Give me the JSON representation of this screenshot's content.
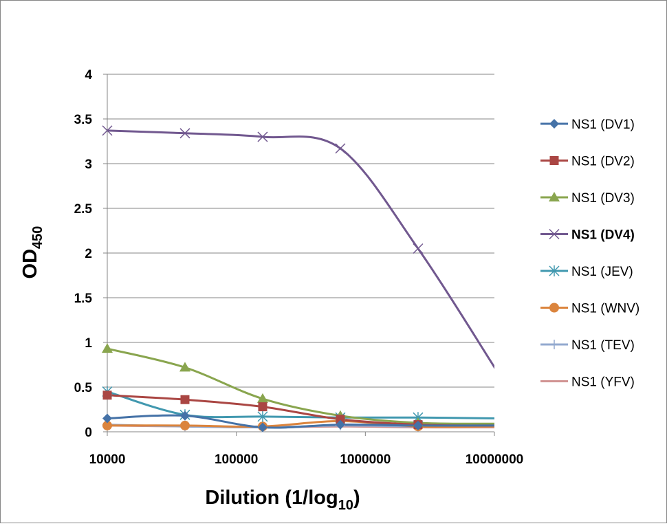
{
  "chart_data": {
    "type": "line",
    "x_scale": "log",
    "x": [
      10000,
      40000,
      160000,
      640000,
      2560000,
      10240000
    ],
    "xlim": [
      10000,
      10000000
    ],
    "ylim": [
      0,
      4
    ],
    "x_ticks": [
      "10000",
      "100000",
      "1000000",
      "10000000"
    ],
    "y_ticks": [
      "0",
      "0.5",
      "1",
      "1.5",
      "2",
      "2.5",
      "3",
      "3.5",
      "4"
    ],
    "xlabel": "Dilution (1/log",
    "xlabel_sub": "10",
    "xlabel_end": ")",
    "ylabel": "OD",
    "ylabel_sub": "450",
    "grid": "horizontal",
    "legend_position": "right",
    "series": [
      {
        "name": "NS1 (DV1)",
        "color": "#4572A7",
        "marker": "diamond",
        "bold": false,
        "values": [
          0.15,
          0.18,
          0.05,
          0.08,
          0.07,
          0.07
        ]
      },
      {
        "name": "NS1 (DV2)",
        "color": "#AA4643",
        "marker": "square",
        "bold": false,
        "values": [
          0.41,
          0.36,
          0.28,
          0.14,
          0.08,
          0.07
        ]
      },
      {
        "name": "NS1 (DV3)",
        "color": "#89A54E",
        "marker": "triangle",
        "bold": false,
        "values": [
          0.93,
          0.72,
          0.37,
          0.18,
          0.1,
          0.09
        ]
      },
      {
        "name": "NS1 (DV4)",
        "color": "#71588F",
        "marker": "x",
        "bold": true,
        "values": [
          3.37,
          3.34,
          3.3,
          3.17,
          2.05,
          0.7
        ]
      },
      {
        "name": "NS1 (JEV)",
        "color": "#4198AF",
        "marker": "star",
        "bold": false,
        "values": [
          0.45,
          0.19,
          0.17,
          0.16,
          0.16,
          0.15
        ]
      },
      {
        "name": "NS1 (WNV)",
        "color": "#DB843D",
        "marker": "circle",
        "bold": false,
        "values": [
          0.07,
          0.07,
          0.06,
          0.12,
          0.06,
          0.06
        ]
      },
      {
        "name": "NS1 (TEV)",
        "color": "#93A9CF",
        "marker": "plus",
        "bold": false,
        "values": [
          0.08,
          0.06,
          0.05,
          0.07,
          0.06,
          0.06
        ]
      },
      {
        "name": "NS1 (YFV)",
        "color": "#D19392",
        "marker": "none",
        "bold": false,
        "values": [
          0.07,
          0.06,
          0.05,
          0.06,
          0.05,
          0.05
        ]
      }
    ]
  }
}
